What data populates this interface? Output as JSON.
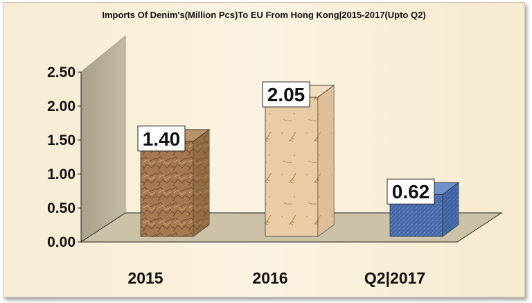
{
  "chart_data": {
    "type": "bar",
    "title": "Imports Of Denim's(Million Pcs)To EU From Hong Kong|2015-2017(Upto Q2)",
    "categories": [
      "2015",
      "2016",
      "Q2|2017"
    ],
    "values": [
      1.4,
      2.05,
      0.62
    ],
    "value_labels": [
      "1.40",
      "2.05",
      "0.62"
    ],
    "ylim": [
      0,
      2.5
    ],
    "yticks": [
      "0.00",
      "0.50",
      "1.00",
      "1.50",
      "2.00",
      "2.50"
    ],
    "xlabel": "",
    "ylabel": "",
    "grid": false,
    "legend": "none",
    "bar_styles": [
      "crumpled-brown-paper",
      "fossil-stone",
      "blue-denim"
    ],
    "colors": {
      "bar_2015": "#a57a4f",
      "bar_2016": "#e6caa6",
      "bar_2017": "#4f74b6",
      "floor": "#ccc2a8",
      "back_wall": "#b4ab97"
    }
  }
}
